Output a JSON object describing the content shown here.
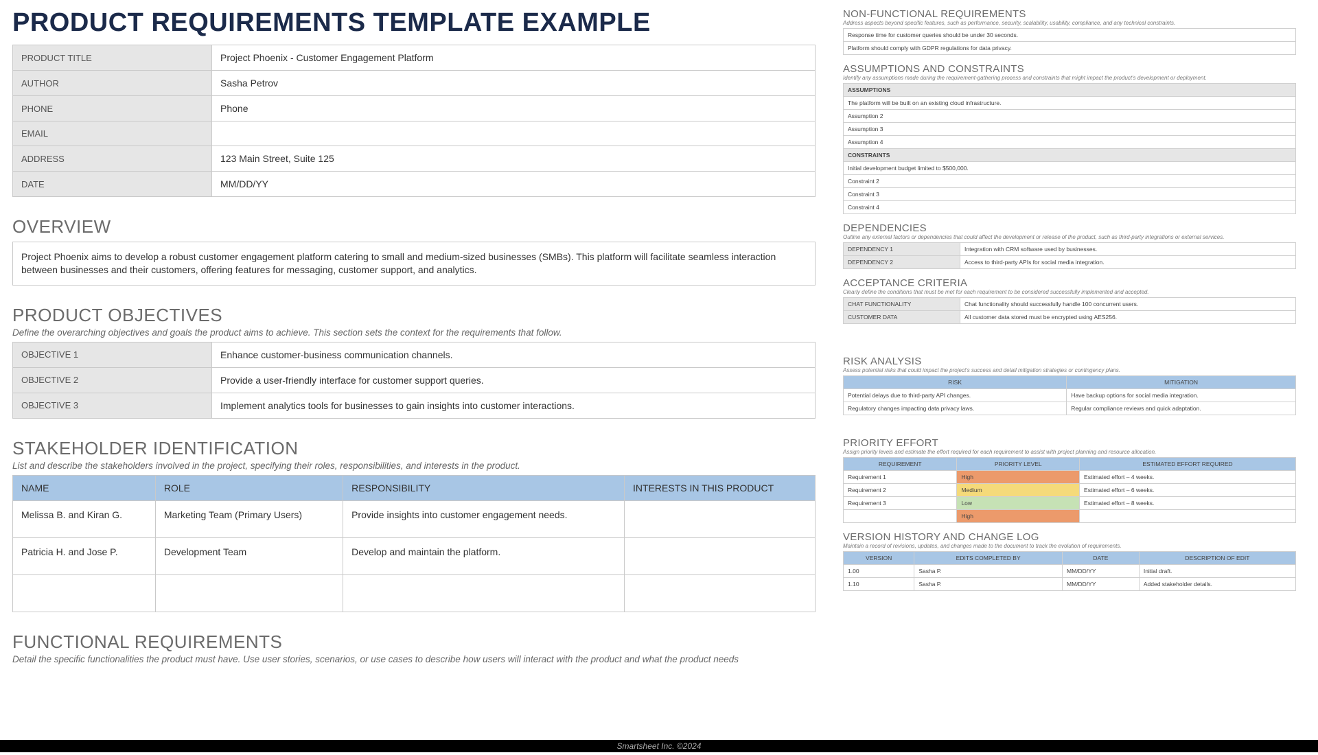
{
  "title": "PRODUCT REQUIREMENTS TEMPLATE EXAMPLE",
  "info": {
    "rows": [
      {
        "label": "PRODUCT TITLE",
        "value": "Project Phoenix - Customer Engagement Platform"
      },
      {
        "label": "AUTHOR",
        "value": "Sasha Petrov"
      },
      {
        "label": "PHONE",
        "value": "Phone"
      },
      {
        "label": "EMAIL",
        "value": ""
      },
      {
        "label": "ADDRESS",
        "value": "123 Main Street, Suite 125"
      },
      {
        "label": "DATE",
        "value": "MM/DD/YY"
      }
    ]
  },
  "overview": {
    "heading": "OVERVIEW",
    "text": "Project Phoenix aims to develop a robust customer engagement platform catering to small and medium-sized businesses (SMBs). This platform will facilitate seamless interaction between businesses and their customers, offering features for messaging, customer support, and analytics."
  },
  "objectives": {
    "heading": "PRODUCT OBJECTIVES",
    "sub": "Define the overarching objectives and goals the product aims to achieve. This section sets the context for the requirements that follow.",
    "rows": [
      {
        "label": "OBJECTIVE 1",
        "value": "Enhance customer-business communication channels."
      },
      {
        "label": "OBJECTIVE 2",
        "value": "Provide a user-friendly interface for customer support queries."
      },
      {
        "label": "OBJECTIVE 3",
        "value": "Implement analytics tools for businesses to gain insights into customer interactions."
      }
    ]
  },
  "stakeholders": {
    "heading": "STAKEHOLDER IDENTIFICATION",
    "sub": "List and describe the stakeholders involved in the project, specifying their roles, responsibilities, and interests in the product.",
    "cols": [
      "NAME",
      "ROLE",
      "RESPONSIBILITY",
      "INTERESTS IN THIS PRODUCT"
    ],
    "rows": [
      [
        "Melissa B. and Kiran G.",
        "Marketing Team (Primary Users)",
        "Provide insights into customer engagement needs.",
        ""
      ],
      [
        "Patricia H. and Jose P.",
        "Development Team",
        "Develop and maintain the platform.",
        ""
      ],
      [
        "",
        "",
        "",
        ""
      ]
    ]
  },
  "functional": {
    "heading": "FUNCTIONAL REQUIREMENTS",
    "sub": "Detail the specific functionalities the product must have. Use user stories, scenarios, or use cases to describe how users will interact with the product and what the product needs"
  },
  "nonfunctional": {
    "heading": "NON-FUNCTIONAL REQUIREMENTS",
    "sub": "Address aspects beyond specific features, such as performance, security, scalability, usability, compliance, and any technical constraints.",
    "rows": [
      "Response time for customer queries should be under 30 seconds.",
      "Platform should comply with GDPR regulations for data privacy."
    ]
  },
  "assumptions": {
    "heading": "ASSUMPTIONS AND CONSTRAINTS",
    "sub": "Identify any assumptions made during the requirement-gathering process and constraints that might impact the product's development or deployment.",
    "assumption_header": "ASSUMPTIONS",
    "assumption_rows": [
      "The platform will be built on an existing cloud infrastructure.",
      "Assumption 2",
      "Assumption 3",
      "Assumption 4"
    ],
    "constraint_header": "CONSTRAINTS",
    "constraint_rows": [
      "Initial development budget limited to $500,000.",
      "Constraint 2",
      "Constraint 3",
      "Constraint 4"
    ]
  },
  "dependencies": {
    "heading": "DEPENDENCIES",
    "sub": "Outline any external factors or dependencies that could affect the development or release of the product, such as third-party integrations or external services.",
    "rows": [
      {
        "label": "DEPENDENCY 1",
        "value": "Integration with CRM software used by businesses."
      },
      {
        "label": "DEPENDENCY 2",
        "value": "Access to third-party APIs for social media integration."
      }
    ]
  },
  "acceptance": {
    "heading": "ACCEPTANCE CRITERIA",
    "sub": "Clearly define the conditions that must be met for each requirement to be considered successfully implemented and accepted.",
    "rows": [
      {
        "label": "CHAT FUNCTIONALITY",
        "value": "Chat functionality should successfully handle 100 concurrent users."
      },
      {
        "label": "CUSTOMER DATA",
        "value": "All customer data stored must be encrypted using AES256."
      }
    ]
  },
  "risk": {
    "heading": "RISK ANALYSIS",
    "sub": "Assess potential risks that could impact the project's success and detail mitigation strategies or contingency plans.",
    "cols": [
      "RISK",
      "MITIGATION"
    ],
    "rows": [
      [
        "Potential delays due to third-party API changes.",
        "Have backup options for social media integration."
      ],
      [
        "Regulatory changes impacting data privacy laws.",
        "Regular compliance reviews and quick adaptation."
      ]
    ]
  },
  "priority": {
    "heading": "PRIORITY EFFORT",
    "sub": "Assign priority levels and estimate the effort required for each requirement to assist with project planning and resource allocation.",
    "cols": [
      "REQUIREMENT",
      "PRIORITY LEVEL",
      "ESTIMATED EFFORT REQUIRED"
    ],
    "rows": [
      {
        "req": "Requirement 1",
        "level": "High",
        "cls": "prio-high",
        "effort": "Estimated effort – 4 weeks."
      },
      {
        "req": "Requirement 2",
        "level": "Medium",
        "cls": "prio-med",
        "effort": "Estimated effort – 6 weeks."
      },
      {
        "req": "Requirement 3",
        "level": "Low",
        "cls": "prio-low",
        "effort": "Estimated effort – 8 weeks."
      },
      {
        "req": "",
        "level": "High",
        "cls": "prio-high",
        "effort": ""
      }
    ]
  },
  "version": {
    "heading": "VERSION HISTORY AND CHANGE LOG",
    "sub": "Maintain a record of revisions, updates, and changes made to the document to track the evolution of requirements.",
    "cols": [
      "VERSION",
      "EDITS COMPLETED BY",
      "DATE",
      "DESCRIPTION OF EDIT"
    ],
    "rows": [
      [
        "1.00",
        "Sasha P.",
        "MM/DD/YY",
        "Initial draft."
      ],
      [
        "1.10",
        "Sasha P.",
        "MM/DD/YY",
        "Added stakeholder details."
      ]
    ]
  },
  "footer": "Smartsheet Inc. ©2024",
  "colors": {
    "title": "#1b2a4a",
    "section": "#6b6b6b",
    "header_blue": "#a8c6e5",
    "grey_cell": "#e6e6e6",
    "border": "#c9c9c9",
    "prio_high": "#ec9a6b",
    "prio_med": "#f5da7a",
    "prio_low": "#c6e2b5"
  }
}
